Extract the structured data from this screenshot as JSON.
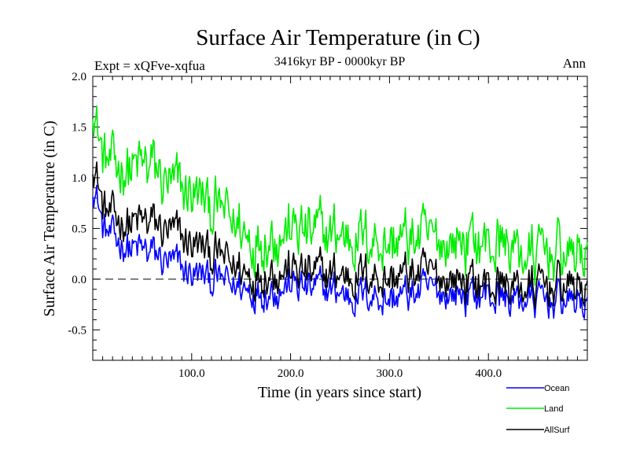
{
  "chart_data": {
    "type": "line",
    "title": "Surface Air Temperature (in C)",
    "subtitle": "3416kyr BP - 0000kyr BP",
    "experiment_label": "Expt = xQFve-xqfua",
    "season_label": "Ann",
    "xlabel": "Time (in years since start)",
    "ylabel": "Surface Air Temperature (in C)",
    "xlim": [
      0,
      500
    ],
    "ylim": [
      -0.8,
      2.0
    ],
    "x_ticks": [
      100,
      200,
      300,
      400
    ],
    "x_tick_labels": [
      "100.0",
      "200.0",
      "300.0",
      "400.0"
    ],
    "y_ticks": [
      -0.5,
      0.0,
      0.5,
      1.0,
      1.5,
      2.0
    ],
    "y_tick_labels": [
      "-0.5",
      "0.0",
      "0.5",
      "1.0",
      "1.5",
      "2.0"
    ],
    "zero_reference_line": 0.0,
    "series": [
      {
        "name": "Ocean",
        "color": "#0000ff",
        "anchors_x": [
          0,
          5,
          10,
          20,
          40,
          60,
          80,
          100,
          120,
          140,
          160,
          180,
          200,
          220,
          240,
          260,
          280,
          300,
          320,
          340,
          360,
          380,
          400,
          420,
          440,
          460,
          480,
          500
        ],
        "anchors_y": [
          0.95,
          0.8,
          0.5,
          0.4,
          0.3,
          0.25,
          0.15,
          0.05,
          0.0,
          -0.05,
          -0.1,
          -0.1,
          -0.05,
          -0.1,
          -0.1,
          -0.15,
          -0.15,
          -0.2,
          -0.15,
          -0.1,
          -0.15,
          -0.15,
          -0.15,
          -0.2,
          -0.2,
          -0.2,
          -0.2,
          -0.25
        ]
      },
      {
        "name": "Land",
        "color": "#00ee00",
        "anchors_x": [
          0,
          5,
          10,
          20,
          40,
          60,
          80,
          100,
          120,
          140,
          160,
          180,
          200,
          220,
          240,
          260,
          280,
          300,
          320,
          340,
          360,
          380,
          400,
          420,
          440,
          460,
          480,
          500
        ],
        "anchors_y": [
          1.8,
          1.5,
          1.2,
          1.1,
          1.1,
          1.1,
          0.9,
          0.85,
          0.7,
          0.6,
          0.4,
          0.45,
          0.5,
          0.45,
          0.45,
          0.45,
          0.4,
          0.35,
          0.4,
          0.4,
          0.35,
          0.4,
          0.35,
          0.35,
          0.2,
          0.3,
          0.25,
          0.25
        ]
      },
      {
        "name": "AllSurf",
        "color": "#000000",
        "anchors_x": [
          0,
          5,
          10,
          20,
          40,
          60,
          80,
          100,
          120,
          140,
          160,
          180,
          200,
          220,
          240,
          260,
          280,
          300,
          320,
          340,
          360,
          380,
          400,
          420,
          440,
          460,
          480,
          500
        ],
        "anchors_y": [
          1.2,
          1.0,
          0.7,
          0.6,
          0.55,
          0.55,
          0.45,
          0.35,
          0.25,
          0.15,
          0.05,
          0.1,
          0.1,
          0.05,
          0.05,
          0.05,
          0.05,
          0.0,
          0.05,
          0.05,
          0.0,
          0.0,
          -0.05,
          -0.05,
          -0.1,
          -0.05,
          -0.05,
          -0.1
        ]
      }
    ],
    "legend": [
      {
        "label": "Ocean",
        "color": "#0000ff"
      },
      {
        "label": "Land",
        "color": "#00ee00"
      },
      {
        "label": "AllSurf",
        "color": "#000000"
      }
    ]
  }
}
